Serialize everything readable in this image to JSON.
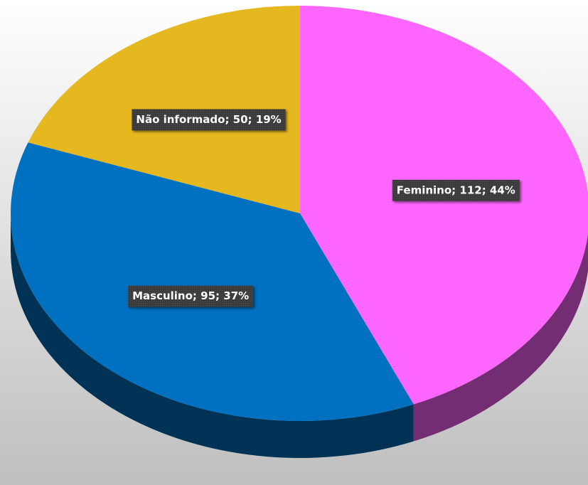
{
  "chart_data": {
    "type": "pie",
    "style": "3d",
    "categories": [
      "Feminino",
      "Masculino",
      "Não informado"
    ],
    "values": [
      112,
      95,
      50
    ],
    "value_labels": [
      "Feminino; 112; 44%",
      "Masculino; 95; 37%",
      "Não informado; 50; 19%"
    ],
    "colors": [
      "#ff66ff",
      "#0070c0",
      "#e6b820"
    ]
  }
}
